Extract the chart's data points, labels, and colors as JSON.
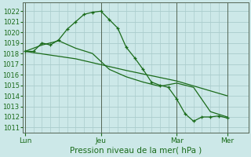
{
  "xlabel": "Pression niveau de la mer( hPa )",
  "bg_color": "#cce8e8",
  "grid_color": "#aacccc",
  "line_color": "#1a6b1a",
  "spine_color": "#556655",
  "ylim": [
    1010.5,
    1022.8
  ],
  "yticks": [
    1011,
    1012,
    1013,
    1014,
    1015,
    1016,
    1017,
    1018,
    1019,
    1020,
    1021,
    1022
  ],
  "xtick_labels": [
    "Lun",
    "Jeu",
    "Mar",
    "Mer"
  ],
  "xtick_positions": [
    0.0,
    9.0,
    18.0,
    24.0
  ],
  "xlim": [
    -0.3,
    26.5
  ],
  "series1_x": [
    0,
    1,
    2,
    3,
    4,
    5,
    6,
    7,
    8,
    9,
    10,
    11,
    12,
    13,
    14,
    15,
    16,
    17,
    18,
    19,
    20,
    21,
    22,
    23,
    24
  ],
  "series1_y": [
    1018.2,
    1018.2,
    1019.0,
    1018.8,
    1019.3,
    1020.3,
    1021.0,
    1021.7,
    1021.9,
    1022.0,
    1021.2,
    1020.4,
    1018.6,
    1017.6,
    1016.5,
    1015.3,
    1015.0,
    1014.8,
    1013.7,
    1012.3,
    1011.6,
    1012.0,
    1012.0,
    1012.1,
    1011.9
  ],
  "series2_x": [
    0,
    2,
    4,
    6,
    8,
    10,
    12,
    14,
    16,
    18,
    20,
    22,
    24
  ],
  "series2_y": [
    1018.2,
    1018.8,
    1019.2,
    1018.5,
    1018.0,
    1016.5,
    1015.8,
    1015.3,
    1014.9,
    1015.2,
    1014.8,
    1012.5,
    1012.0
  ],
  "series3_x": [
    0,
    6,
    12,
    18,
    24
  ],
  "series3_y": [
    1018.2,
    1017.5,
    1016.4,
    1015.4,
    1014.0
  ],
  "xlabel_fontsize": 7.5,
  "ytick_fontsize": 6.0,
  "xtick_fontsize": 6.5
}
